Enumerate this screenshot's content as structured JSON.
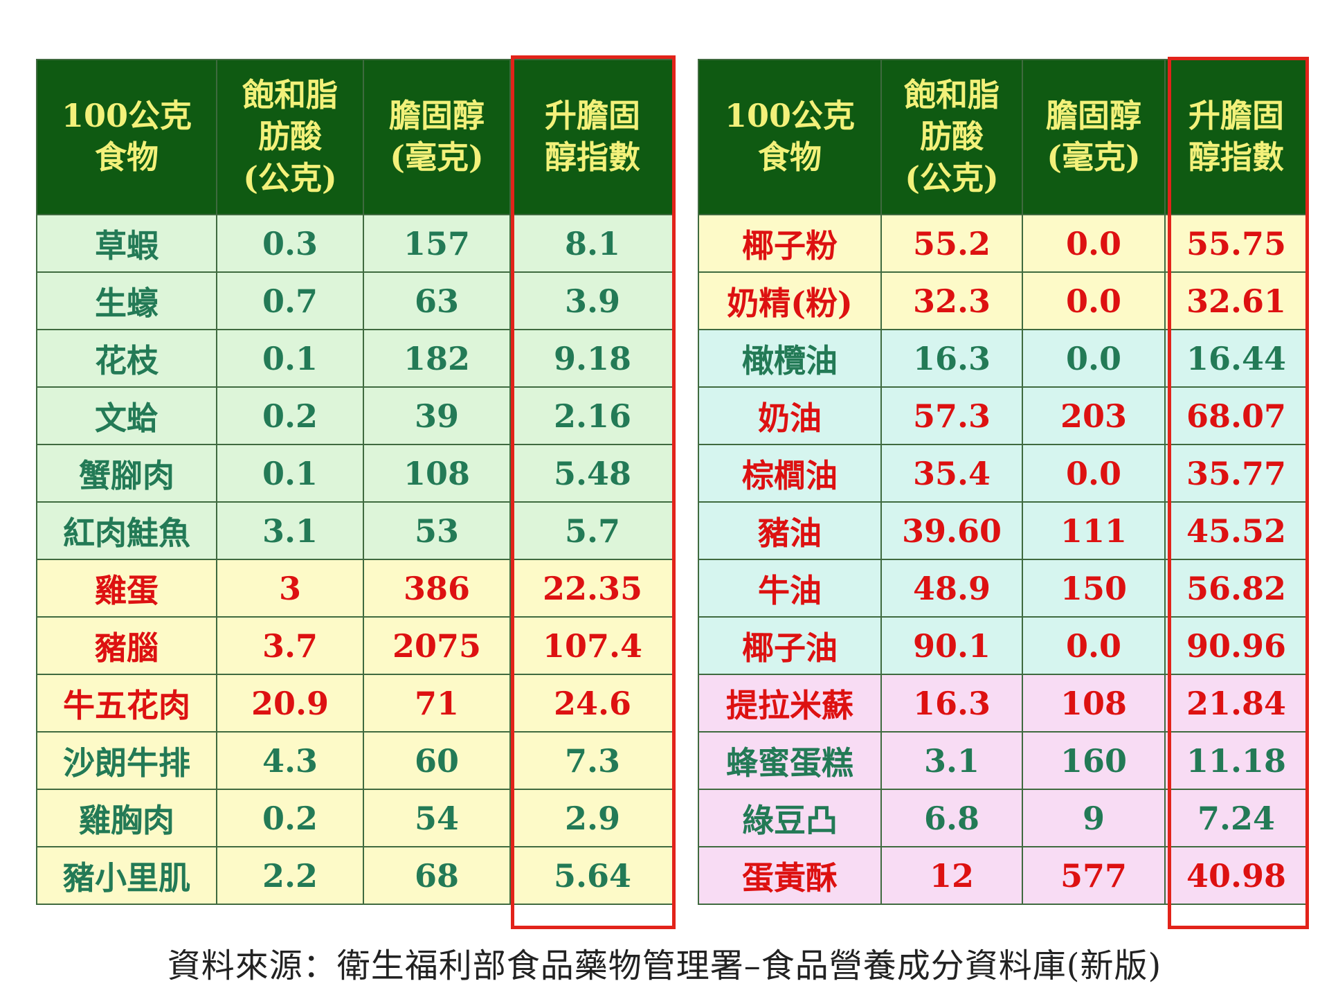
{
  "headers": [
    [
      "100公克",
      "食物"
    ],
    [
      "飽和脂",
      "肪酸",
      "(公克)"
    ],
    [
      "膽固醇",
      "(毫克)"
    ],
    [
      "升膽固",
      "醇指數"
    ]
  ],
  "left_rows": [
    {
      "food": "草蝦",
      "sat_fat": "0.3",
      "chol": "157",
      "index": "8.1",
      "bg": "green",
      "tx": "green"
    },
    {
      "food": "生蠔",
      "sat_fat": "0.7",
      "chol": "63",
      "index": "3.9",
      "bg": "green",
      "tx": "green"
    },
    {
      "food": "花枝",
      "sat_fat": "0.1",
      "chol": "182",
      "index": "9.18",
      "bg": "green",
      "tx": "green"
    },
    {
      "food": "文蛤",
      "sat_fat": "0.2",
      "chol": "39",
      "index": "2.16",
      "bg": "green",
      "tx": "green"
    },
    {
      "food": "蟹腳肉",
      "sat_fat": "0.1",
      "chol": "108",
      "index": "5.48",
      "bg": "green",
      "tx": "green"
    },
    {
      "food": "紅肉鮭魚",
      "sat_fat": "3.1",
      "chol": "53",
      "index": "5.7",
      "bg": "green",
      "tx": "green"
    },
    {
      "food": "雞蛋",
      "sat_fat": "3",
      "chol": "386",
      "index": "22.35",
      "bg": "yellow",
      "tx": "red"
    },
    {
      "food": "豬腦",
      "sat_fat": "3.7",
      "chol": "2075",
      "index": "107.4",
      "bg": "yellow",
      "tx": "red"
    },
    {
      "food": "牛五花肉",
      "sat_fat": "20.9",
      "chol": "71",
      "index": "24.6",
      "bg": "yellow",
      "tx": "red"
    },
    {
      "food": "沙朗牛排",
      "sat_fat": "4.3",
      "chol": "60",
      "index": "7.3",
      "bg": "yellow",
      "tx": "green"
    },
    {
      "food": "雞胸肉",
      "sat_fat": "0.2",
      "chol": "54",
      "index": "2.9",
      "bg": "yellow",
      "tx": "green"
    },
    {
      "food": "豬小里肌",
      "sat_fat": "2.2",
      "chol": "68",
      "index": "5.64",
      "bg": "yellow",
      "tx": "green"
    }
  ],
  "right_rows": [
    {
      "food": "椰子粉",
      "sat_fat": "55.2",
      "chol": "0.0",
      "index": "55.75",
      "bg": "yellow",
      "tx": "red"
    },
    {
      "food": "奶精(粉)",
      "sat_fat": "32.3",
      "chol": "0.0",
      "index": "32.61",
      "bg": "yellow",
      "tx": "red"
    },
    {
      "food": "橄欖油",
      "sat_fat": "16.3",
      "chol": "0.0",
      "index": "16.44",
      "bg": "cyan",
      "tx": "green"
    },
    {
      "food": "奶油",
      "sat_fat": "57.3",
      "chol": "203",
      "index": "68.07",
      "bg": "cyan",
      "tx": "red"
    },
    {
      "food": "棕櫚油",
      "sat_fat": "35.4",
      "chol": "0.0",
      "index": "35.77",
      "bg": "cyan",
      "tx": "red"
    },
    {
      "food": "豬油",
      "sat_fat": "39.60",
      "chol": "111",
      "index": "45.52",
      "bg": "cyan",
      "tx": "red"
    },
    {
      "food": "牛油",
      "sat_fat": "48.9",
      "chol": "150",
      "index": "56.82",
      "bg": "cyan",
      "tx": "red"
    },
    {
      "food": "椰子油",
      "sat_fat": "90.1",
      "chol": "0.0",
      "index": "90.96",
      "bg": "cyan",
      "tx": "red"
    },
    {
      "food": "提拉米蘇",
      "sat_fat": "16.3",
      "chol": "108",
      "index": "21.84",
      "bg": "pink",
      "tx": "red"
    },
    {
      "food": "蜂蜜蛋糕",
      "sat_fat": "3.1",
      "chol": "160",
      "index": "11.18",
      "bg": "pink",
      "tx": "green"
    },
    {
      "food": "綠豆凸",
      "sat_fat": "6.8",
      "chol": "9",
      "index": "7.24",
      "bg": "pink",
      "tx": "green"
    },
    {
      "food": "蛋黃酥",
      "sat_fat": "12",
      "chol": "577",
      "index": "40.98",
      "bg": "pink",
      "tx": "red"
    }
  ],
  "source_note": "資料來源：衛生福利部食品藥物管理署–食品營養成分資料庫(新版)"
}
